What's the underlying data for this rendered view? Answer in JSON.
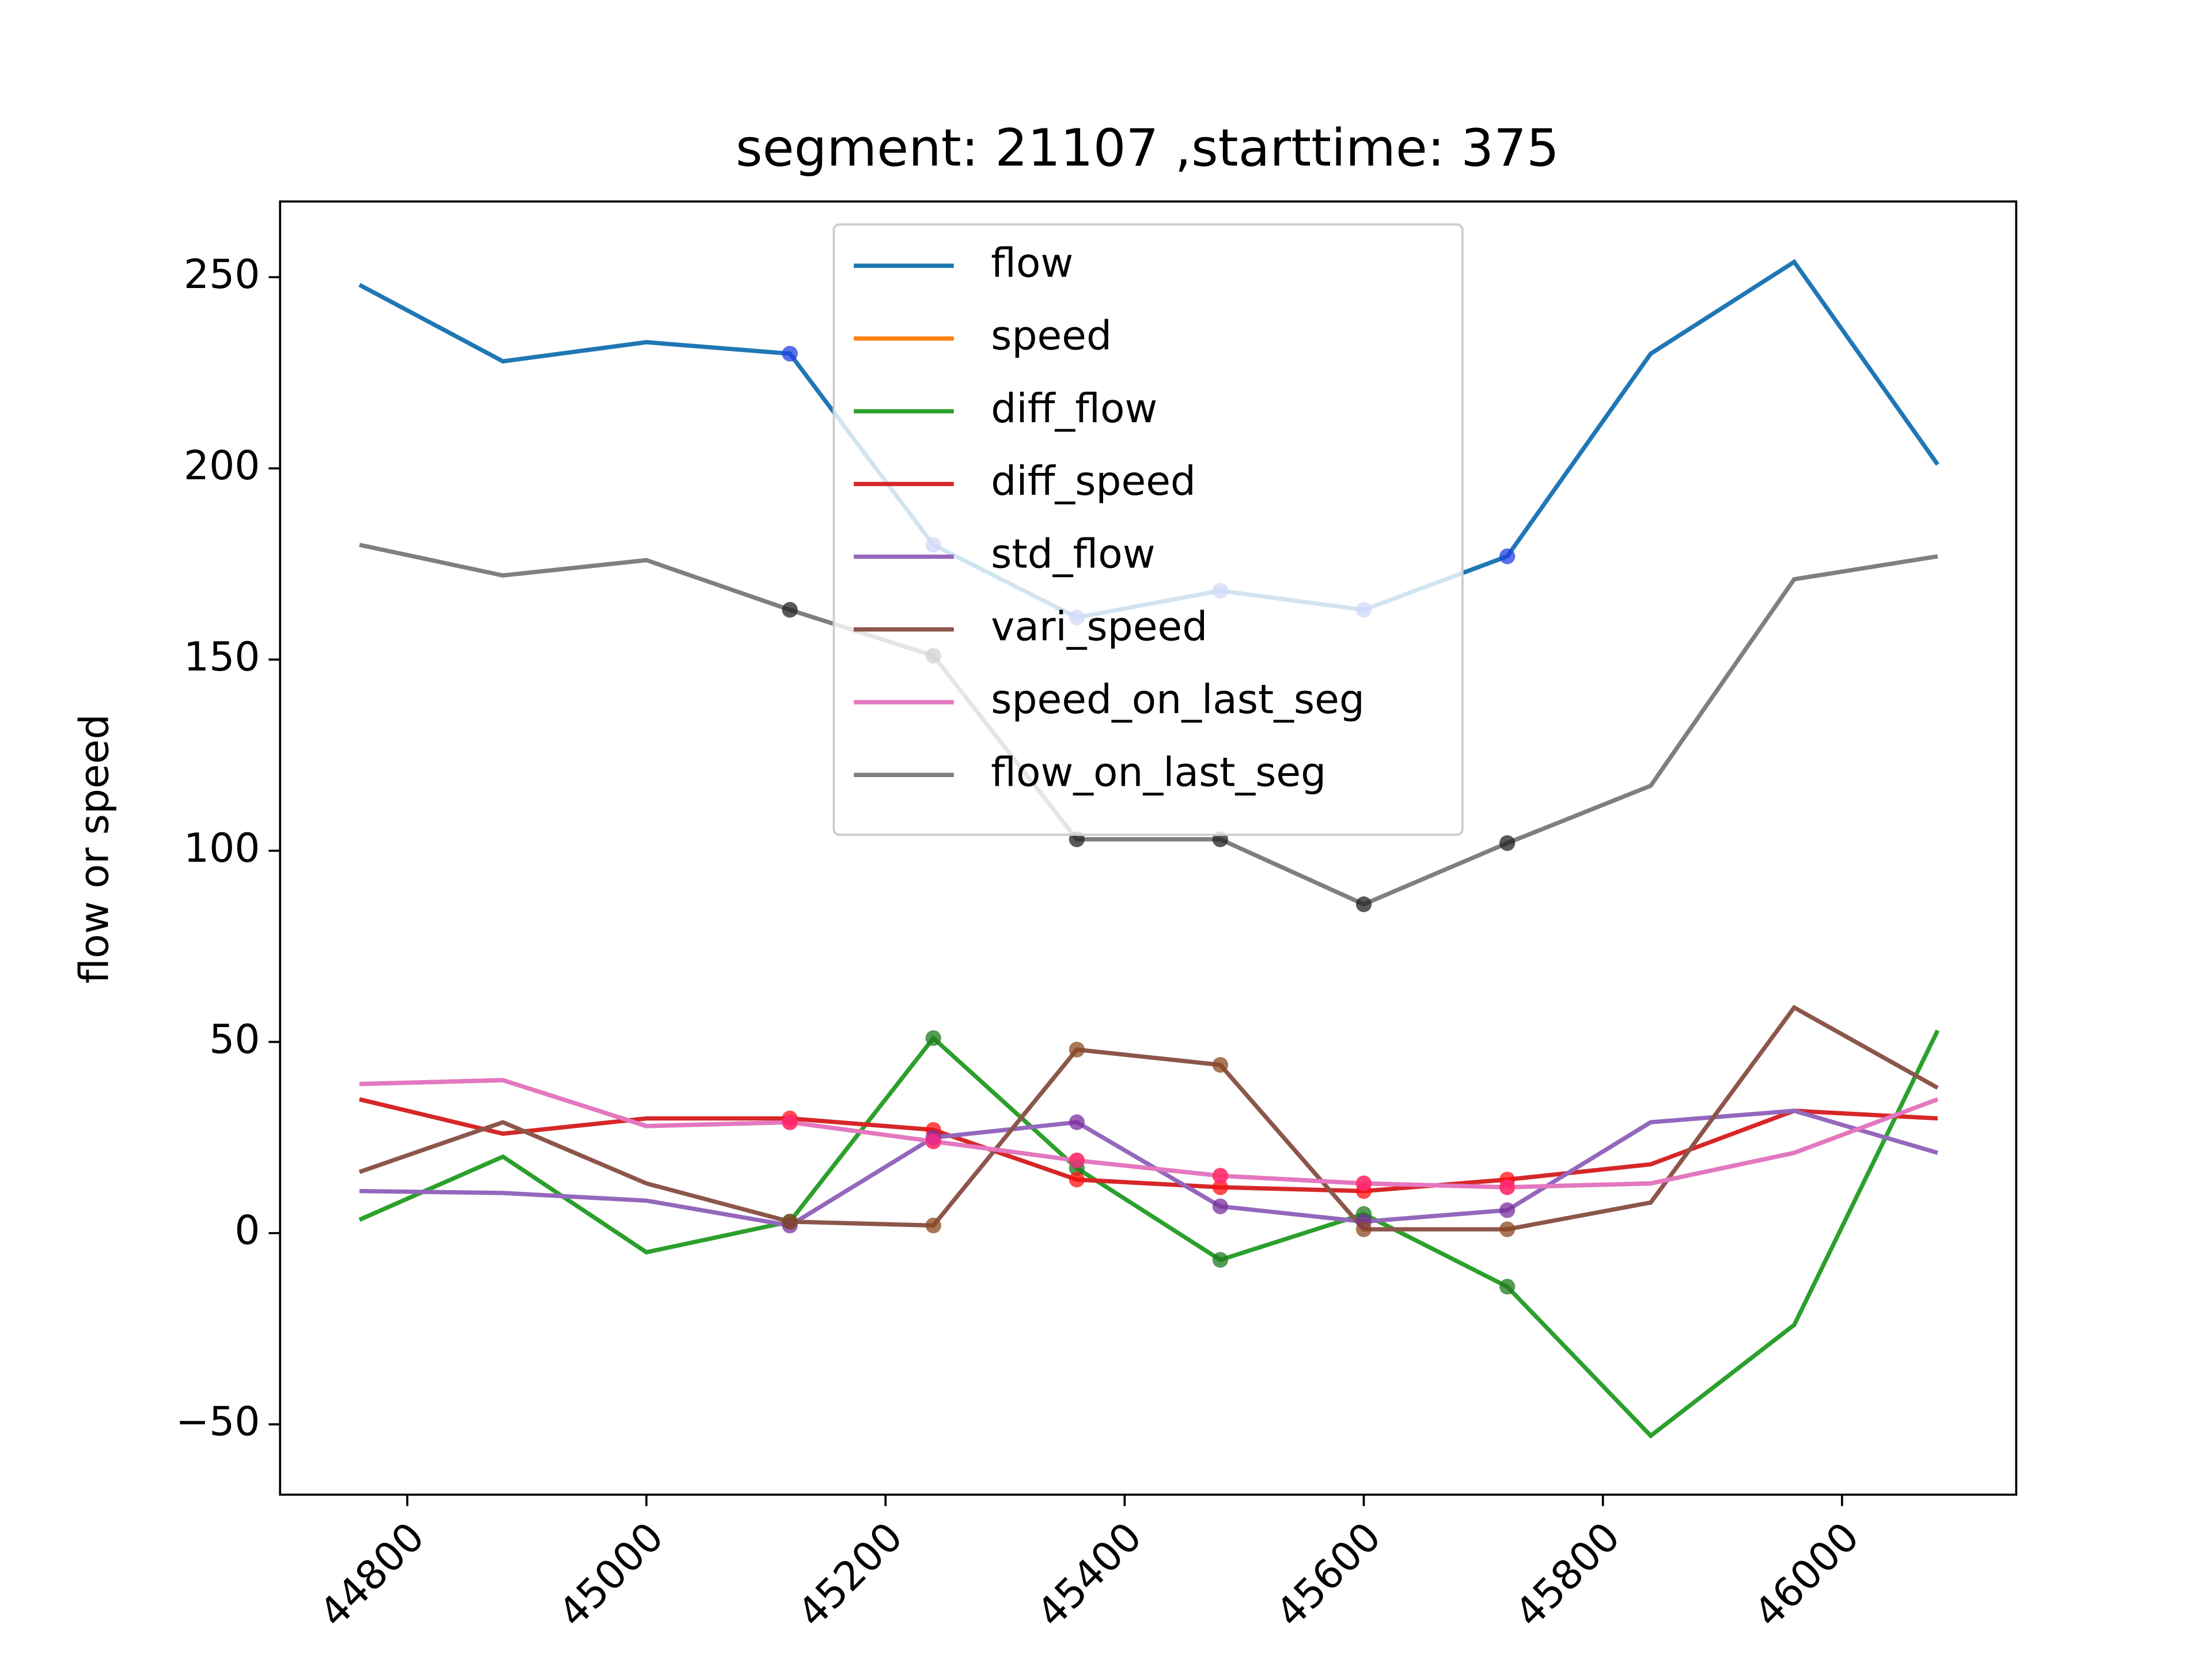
{
  "chart_data": {
    "type": "line",
    "title": "segment: 21107 ,starttime: 375",
    "ylabel": "flow or speed",
    "x": [
      44760,
      44880,
      45000,
      45120,
      45240,
      45360,
      45480,
      45600,
      45720,
      45840,
      45960,
      46080
    ],
    "xlim": [
      44693.6,
      46145.7
    ],
    "xticks": [
      44800,
      45000,
      45200,
      45400,
      45600,
      45800,
      46000
    ],
    "ylim": [
      -68.4,
      269.8
    ],
    "yticks": [
      {
        "value": -50,
        "label": "−50"
      },
      0,
      50,
      100,
      150,
      200,
      250
    ],
    "legend": "upper center",
    "marker_indices": [
      3,
      4,
      5,
      6,
      7,
      8
    ],
    "series": [
      {
        "name": "flow",
        "color": "#1f77b4",
        "marker_color": "#1f3fe0",
        "values": [
          248,
          228,
          233,
          230,
          180,
          161,
          168,
          163,
          177,
          230,
          254,
          201
        ]
      },
      {
        "name": "speed",
        "color": "#ff7f0e",
        "marker_color": "#ff5500",
        "values": [
          39,
          40,
          28,
          29,
          24,
          19,
          15,
          13,
          12,
          13,
          21,
          35
        ]
      },
      {
        "name": "diff_flow",
        "color": "#2ca02c",
        "marker_color": "#1e7a1e",
        "values": [
          3.5,
          20,
          -5,
          3,
          51,
          17,
          -7,
          5,
          -14,
          -53,
          -24,
          53
        ]
      },
      {
        "name": "diff_speed",
        "color": "#d62728",
        "marker_color": "#ff1010",
        "values": [
          35,
          26,
          30,
          30,
          27,
          14,
          12,
          11,
          14,
          18,
          32,
          30
        ]
      },
      {
        "name": "std_flow",
        "color": "#9467bd",
        "marker_color": "#7a2e9e",
        "values": [
          11,
          10.5,
          8.5,
          2,
          25,
          29,
          7,
          3,
          6,
          29,
          32,
          21
        ]
      },
      {
        "name": "vari_speed",
        "color": "#8c564b",
        "marker_color": "#8a4a20",
        "values": [
          16,
          29,
          13,
          3,
          2,
          48,
          44,
          1,
          1,
          8,
          59,
          38
        ]
      },
      {
        "name": "speed_on_last_seg",
        "color": "#e377c2",
        "marker_color": "#ff2a8a",
        "values": [
          39,
          40,
          28,
          29,
          24,
          19,
          15,
          13,
          12,
          13,
          21,
          35
        ]
      },
      {
        "name": "flow_on_last_seg",
        "color": "#7f7f7f",
        "marker_color": "#222222",
        "values": [
          180,
          172,
          176,
          163,
          151,
          103,
          103,
          86,
          102,
          117,
          171,
          177
        ]
      }
    ]
  }
}
